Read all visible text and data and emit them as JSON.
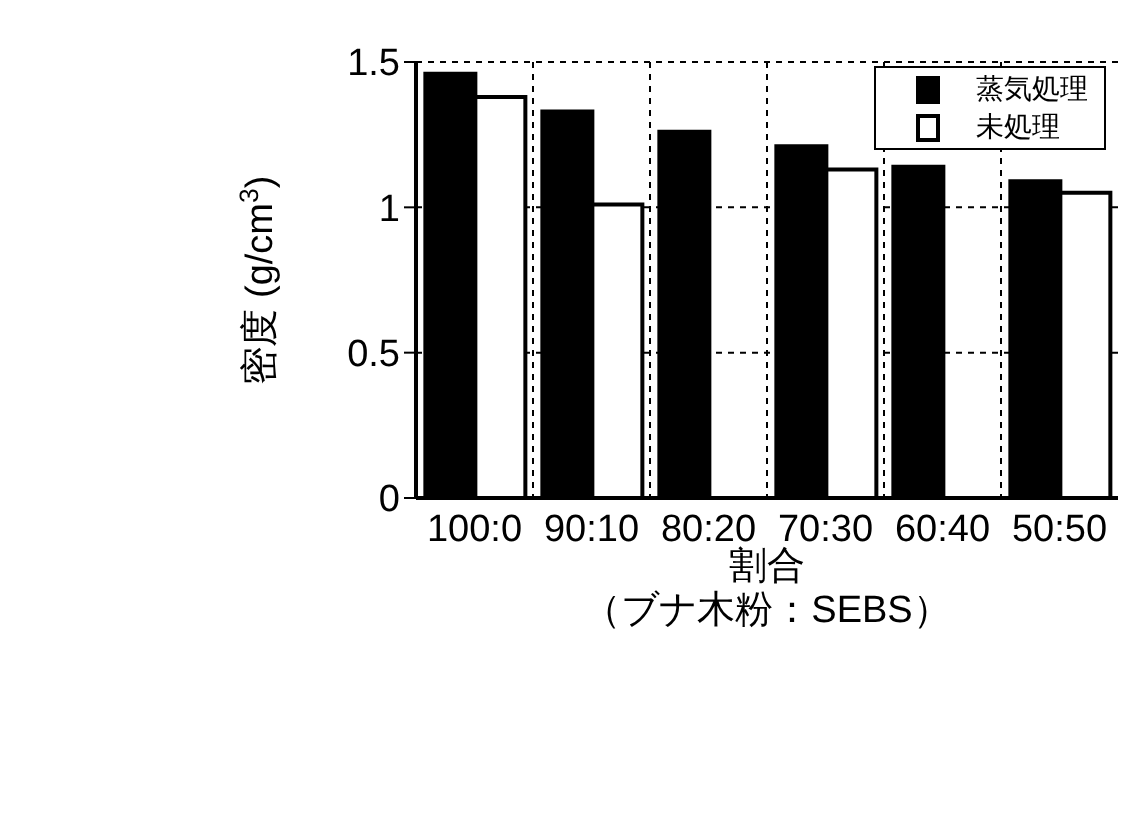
{
  "chart_data": {
    "type": "bar",
    "xlabel": "割合",
    "annotations": [
      "（ブナ木粉：SEBS）"
    ],
    "ylabel": "密度 (g/cm$^{3}$)",
    "categories": [
      "100:0",
      "90:10",
      "80:20",
      "70:30",
      "60:40",
      "50:50"
    ],
    "series": [
      {
        "name": "蒸気処理",
        "color": "#000000",
        "values": [
          1.46,
          1.33,
          1.26,
          1.21,
          1.14,
          1.09
        ]
      },
      {
        "name": "未処理",
        "color": "#ffffff",
        "values": [
          1.38,
          1.01,
          null,
          1.13,
          null,
          1.05
        ]
      }
    ],
    "ylim": [
      0,
      1.5
    ],
    "yticks": [
      0,
      0.5,
      1,
      1.5
    ],
    "grid": true,
    "legend": "top right"
  }
}
